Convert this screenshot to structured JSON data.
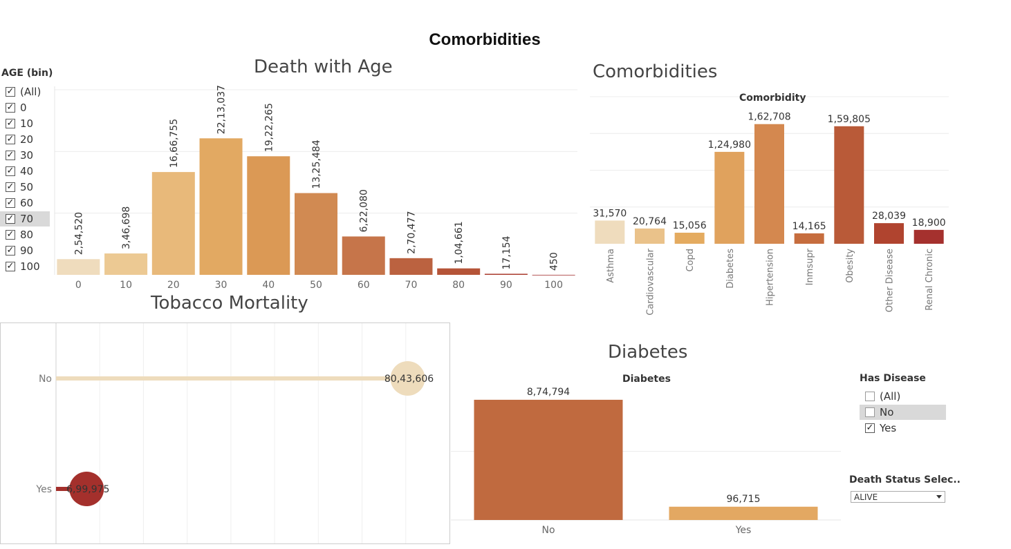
{
  "dashboard_title": "Comorbidities",
  "age_filter": {
    "title": "AGE (bin)",
    "items": [
      {
        "label": "(All)",
        "checked": true
      },
      {
        "label": "0",
        "checked": true
      },
      {
        "label": "10",
        "checked": true
      },
      {
        "label": "20",
        "checked": true
      },
      {
        "label": "30",
        "checked": true
      },
      {
        "label": "40",
        "checked": true
      },
      {
        "label": "50",
        "checked": true
      },
      {
        "label": "60",
        "checked": true
      },
      {
        "label": "70",
        "checked": true
      },
      {
        "label": "80",
        "checked": true
      },
      {
        "label": "90",
        "checked": true
      },
      {
        "label": "100",
        "checked": true
      }
    ]
  },
  "has_disease_filter": {
    "title": "Has Disease",
    "items": [
      {
        "label": "(All)",
        "checked": false
      },
      {
        "label": "No",
        "checked": false
      },
      {
        "label": "Yes",
        "checked": true
      }
    ]
  },
  "death_status": {
    "title": "Death Status Selec..",
    "value": "ALIVE"
  },
  "chart_data": [
    {
      "type": "bar",
      "title": "Death with Age",
      "categories": [
        "0",
        "10",
        "20",
        "30",
        "40",
        "50",
        "60",
        "70",
        "80",
        "90",
        "100"
      ],
      "values": [
        254520,
        346698,
        1666755,
        2213037,
        1922265,
        1325484,
        622080,
        270477,
        104661,
        17154,
        450
      ],
      "labels": [
        "2,54,520",
        "3,46,698",
        "16,66,755",
        "22,13,037",
        "19,22,265",
        "13,25,484",
        "6,22,080",
        "2,70,477",
        "1,04,661",
        "17,154",
        "450"
      ],
      "colors": [
        "#efdcbd",
        "#ecc993",
        "#e8b97a",
        "#e2a962",
        "#db9955",
        "#d18a52",
        "#c6754a",
        "#bb6240",
        "#b55438",
        "#ab3e30",
        "#a33030"
      ],
      "ylim": [
        0,
        3000000
      ],
      "grid": true
    },
    {
      "type": "bar",
      "title": "Comorbidities",
      "subtitle": "Comorbidity",
      "categories": [
        "Asthma",
        "Cardiovascular",
        "Copd",
        "Diabetes",
        "Hipertension",
        "Inmsupr",
        "Obesity",
        "Other Disease",
        "Renal Chronic"
      ],
      "values": [
        31570,
        20764,
        15056,
        124980,
        162708,
        14165,
        159805,
        28039,
        18900
      ],
      "labels": [
        "31,570",
        "20,764",
        "15,056",
        "1,24,980",
        "1,62,708",
        "14,165",
        "1,59,805",
        "28,039",
        "18,900"
      ],
      "colors": [
        "#efdcbd",
        "#eac28a",
        "#e4ab60",
        "#e0a25d",
        "#d4884f",
        "#c66d3e",
        "#b95a38",
        "#b0442f",
        "#a5312e"
      ],
      "ylim": [
        0,
        200000
      ],
      "grid": true
    },
    {
      "type": "scatter",
      "title": "Tobacco Mortality",
      "categories": [
        "No",
        "Yes"
      ],
      "values": [
        8043606,
        699975
      ],
      "labels": [
        "80,43,606",
        "6,99,975"
      ],
      "colors": [
        "#eedcbc",
        "#a4302c"
      ],
      "xlim": [
        0,
        9000000
      ],
      "grid": true
    },
    {
      "type": "bar",
      "title": "Diabetes",
      "subtitle": "Diabetes",
      "categories": [
        "No",
        "Yes"
      ],
      "values": [
        874794,
        96715
      ],
      "labels": [
        "8,74,794",
        "96,715"
      ],
      "colors": [
        "#c06a3f",
        "#e3a862"
      ],
      "ylim": [
        0,
        1000000
      ],
      "grid": true
    }
  ]
}
